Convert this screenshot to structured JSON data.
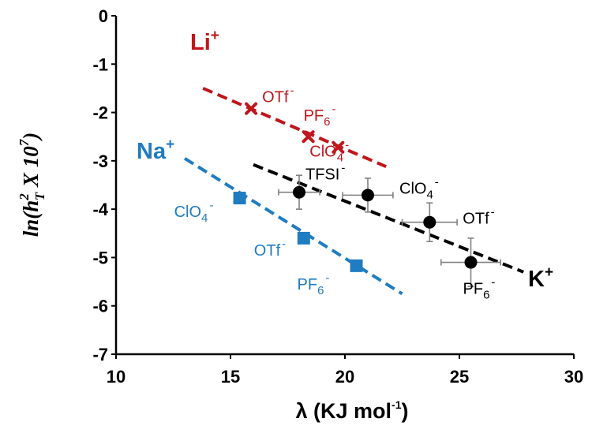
{
  "chart_data": {
    "type": "scatter",
    "title": "",
    "xlabel": "λ (KJ mol",
    "xlabel_sup": "-1",
    "xlabel_close": ")",
    "ylabel": {
      "prefix": "ln(h",
      "sup": "2",
      "sub": "T",
      "middle": " X 10",
      "exp": "7",
      "suffix": ")"
    },
    "xlim": [
      10,
      30
    ],
    "ylim": [
      -7,
      0
    ],
    "xticks": [
      10,
      15,
      20,
      25,
      30
    ],
    "yticks": [
      0,
      -1,
      -2,
      -3,
      -4,
      -5,
      -6,
      -7
    ],
    "grid": false,
    "series": [
      {
        "name": "Li",
        "charge": "+",
        "color": "#c0161c",
        "marker": "x",
        "points": [
          {
            "x": 15.9,
            "y": -1.92,
            "label": "OTf",
            "sup": "-"
          },
          {
            "x": 18.4,
            "y": -2.5,
            "label": "PF",
            "sub": "6",
            "sup": "-"
          },
          {
            "x": 19.7,
            "y": -2.72,
            "label": "ClO",
            "sub": "4",
            "sup": "-"
          }
        ],
        "fit": {
          "x": [
            13.8,
            21.8
          ],
          "y": [
            -1.5,
            -3.12
          ]
        }
      },
      {
        "name": "Na",
        "charge": "+",
        "color": "#1f7cc1",
        "marker": "square",
        "points": [
          {
            "x": 15.4,
            "y": -3.77,
            "label": "ClO",
            "sub": "4",
            "sup": "-"
          },
          {
            "x": 18.2,
            "y": -4.6,
            "label": "OTf",
            "sup": "-"
          },
          {
            "x": 20.5,
            "y": -5.17,
            "label": "PF",
            "sub": "6",
            "sup": "-"
          }
        ],
        "fit": {
          "x": [
            13.0,
            22.5
          ],
          "y": [
            -2.95,
            -5.75
          ]
        }
      },
      {
        "name": "K",
        "charge": "+",
        "color": "#000000",
        "marker": "circle",
        "points": [
          {
            "x": 18.0,
            "y": -3.65,
            "xerr": 0.9,
            "yerr": 0.35,
            "label": "TFSI",
            "sup": "-"
          },
          {
            "x": 21.0,
            "y": -3.71,
            "xerr": 1.1,
            "yerr": 0.35,
            "label": "ClO",
            "sub": "4",
            "sup": "-"
          },
          {
            "x": 23.7,
            "y": -4.27,
            "xerr": 1.2,
            "yerr": 0.4,
            "label": "OTf",
            "sup": "-"
          },
          {
            "x": 25.5,
            "y": -5.1,
            "xerr": 1.3,
            "yerr": 0.5,
            "label": "PF",
            "sub": "6",
            "sup": "-"
          }
        ],
        "fit": {
          "x": [
            16.0,
            27.8
          ],
          "y": [
            -3.08,
            -5.3
          ]
        }
      }
    ]
  }
}
